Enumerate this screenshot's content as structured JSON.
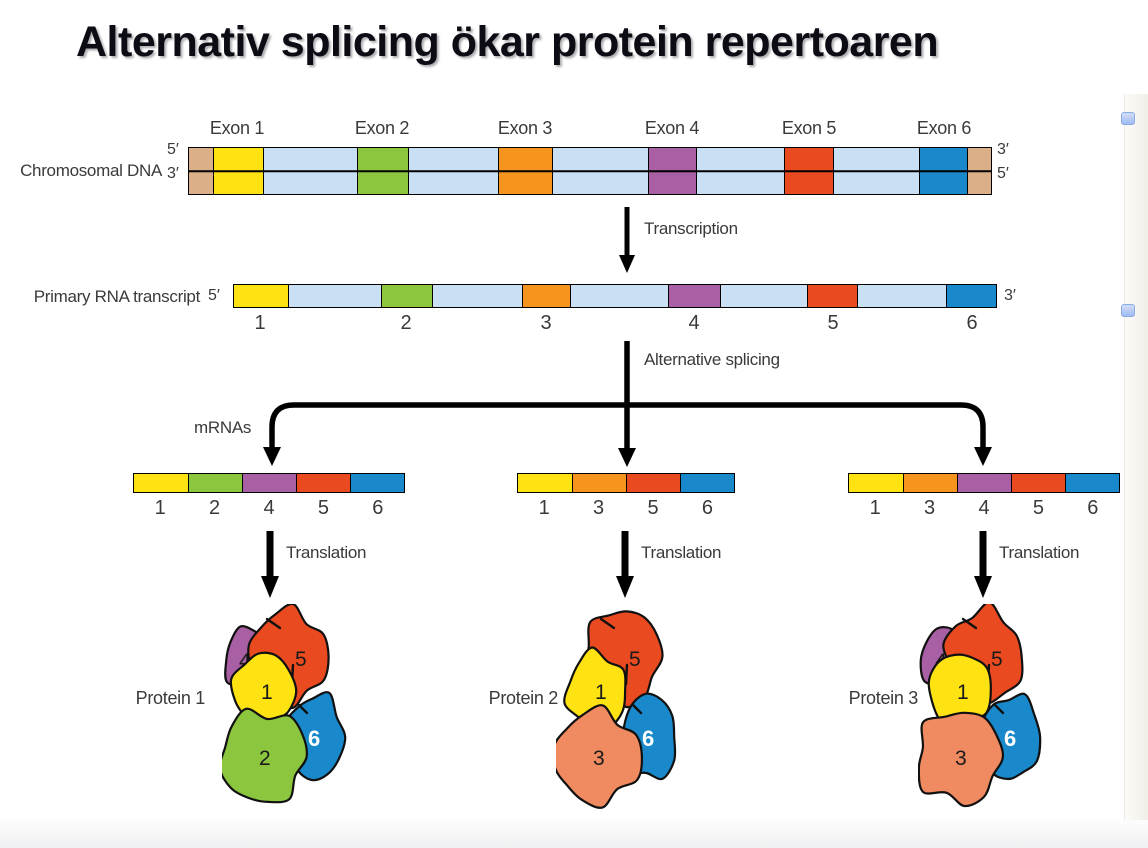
{
  "title": "Alternativ splicing ökar protein repertoaren",
  "labels": {
    "chromosomal_dna": "Chromosomal DNA",
    "primary_rna": "Primary RNA transcript",
    "transcription": "Transcription",
    "alternative_splicing": "Alternative splicing",
    "mrnas": "mRNAs",
    "translation": "Translation"
  },
  "colors": {
    "exon_1": "#FFE212",
    "exon_2": "#8CC63F",
    "exon_3": "#F7941E",
    "exon_4": "#A95FA3",
    "exon_5": "#EA4A20",
    "exon_6": "#1989CB",
    "intron": "#C9DFF4",
    "dna_end": "#DBAF88",
    "protein_subunit_3": "#F08A60",
    "outline": "#000000",
    "label_text": "#3a3a3a",
    "scroll_button": "#A9C4F0"
  },
  "dna": {
    "exon_labels": [
      "Exon 1",
      "Exon 2",
      "Exon 3",
      "Exon 4",
      "Exon 5",
      "Exon 6"
    ],
    "segments": [
      {
        "kind": "end"
      },
      {
        "kind": "exon",
        "exon": 1
      },
      {
        "kind": "intron"
      },
      {
        "kind": "exon",
        "exon": 2
      },
      {
        "kind": "intron"
      },
      {
        "kind": "exon",
        "exon": 3
      },
      {
        "kind": "intron"
      },
      {
        "kind": "exon",
        "exon": 4
      },
      {
        "kind": "intron"
      },
      {
        "kind": "exon",
        "exon": 5
      },
      {
        "kind": "intron"
      },
      {
        "kind": "exon",
        "exon": 6
      },
      {
        "kind": "end"
      }
    ],
    "left_top": "5′",
    "left_bottom": "3′",
    "right_top": "3′",
    "right_bottom": "5′"
  },
  "rna": {
    "segments": [
      {
        "kind": "exon",
        "exon": 1
      },
      {
        "kind": "intron"
      },
      {
        "kind": "exon",
        "exon": 2
      },
      {
        "kind": "intron"
      },
      {
        "kind": "exon",
        "exon": 3
      },
      {
        "kind": "intron"
      },
      {
        "kind": "exon",
        "exon": 4
      },
      {
        "kind": "intron"
      },
      {
        "kind": "exon",
        "exon": 5
      },
      {
        "kind": "intron"
      },
      {
        "kind": "exon",
        "exon": 6
      }
    ],
    "left": "5′",
    "right": "3′"
  },
  "mrnas": [
    {
      "exons": [
        1,
        2,
        4,
        5,
        6
      ]
    },
    {
      "exons": [
        1,
        3,
        5,
        6
      ]
    },
    {
      "exons": [
        1,
        3,
        4,
        5,
        6
      ]
    }
  ],
  "proteins": [
    {
      "label": "Protein 1",
      "subunits": [
        4,
        5,
        1,
        6,
        2
      ]
    },
    {
      "label": "Protein 2",
      "subunits": [
        5,
        1,
        6,
        3
      ]
    },
    {
      "label": "Protein 3",
      "subunits": [
        4,
        5,
        1,
        6,
        3
      ]
    }
  ]
}
